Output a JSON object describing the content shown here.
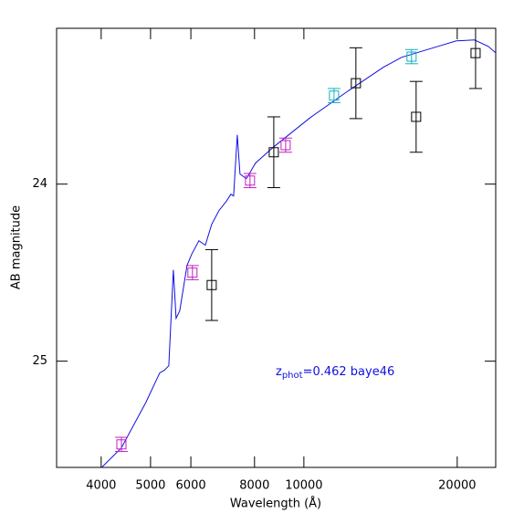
{
  "chart_data": {
    "type": "line",
    "xlabel": "Wavelength (Å)",
    "ylabel": "AB magnitude",
    "xlog": true,
    "xlim": [
      3270,
      23800
    ],
    "ylim": [
      25.6,
      23.12
    ],
    "xticks": [
      4000,
      5000,
      6000,
      8000,
      10000,
      20000
    ],
    "yticks": [
      24,
      25
    ],
    "annotation": {
      "base": "z",
      "subscript": "phot",
      "rest": "=0.462 baye46",
      "color": "#1010e0"
    },
    "series": [
      {
        "kind": "line",
        "color": "#1010e0",
        "x": [
          4000,
          4381,
          4897,
          5210,
          5317,
          5429,
          5543,
          5612,
          5706,
          5897,
          6020,
          6222,
          6404,
          6592,
          6813,
          7040,
          7189,
          7278,
          7400,
          7492,
          7711,
          8035,
          8727,
          10293,
          12140,
          14321,
          15553,
          18340,
          19923,
          21630,
          23010,
          23790
        ],
        "values": [
          25.603,
          25.49,
          25.232,
          25.067,
          25.052,
          25.026,
          24.485,
          24.758,
          24.716,
          24.459,
          24.397,
          24.32,
          24.345,
          24.227,
          24.149,
          24.098,
          24.057,
          24.067,
          23.722,
          23.943,
          23.969,
          23.881,
          23.789,
          23.624,
          23.479,
          23.34,
          23.284,
          23.222,
          23.191,
          23.186,
          23.222,
          23.258
        ]
      },
      {
        "kind": "points",
        "color": "#c020c0",
        "x": [
          4383,
          6043,
          7838,
          9209
        ],
        "values": [
          25.47,
          24.5,
          23.98,
          23.78
        ],
        "errors": [
          0.04,
          0.04,
          0.04,
          0.04
        ]
      },
      {
        "kind": "points",
        "color": "#10b0c0",
        "x": [
          11460,
          16270
        ],
        "values": [
          23.5,
          23.28
        ],
        "errors": [
          0.04,
          0.04
        ]
      },
      {
        "kind": "points",
        "color": "#000000",
        "x": [
          6592,
          8728,
          12650,
          16610,
          21730
        ],
        "values": [
          24.57,
          23.82,
          23.43,
          23.62,
          23.26
        ],
        "errors": [
          0.2,
          0.2,
          0.2,
          0.2,
          0.2
        ]
      }
    ]
  }
}
